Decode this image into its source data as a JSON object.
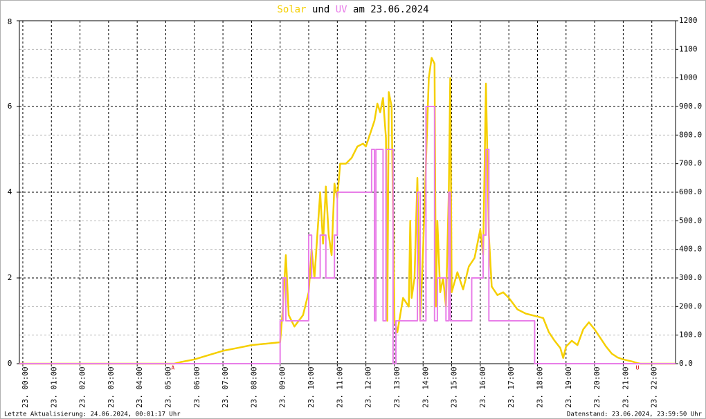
{
  "chart_data": {
    "type": "line",
    "title_connector": "und",
    "title_suffix": "am 23.06.2024",
    "footer_left": "Letzte Aktualisierung: 24.06.2024, 00:01:17 Uhr",
    "footer_right": "Datenstand: 23.06.2024, 23:59:50 Uhr",
    "xlim": [
      -0.12,
      22.83
    ],
    "xticks": [
      {
        "value": 0,
        "label": "23. 00:00"
      },
      {
        "value": 1,
        "label": "23. 01:00"
      },
      {
        "value": 2,
        "label": "23. 02:00"
      },
      {
        "value": 3,
        "label": "23. 03:00"
      },
      {
        "value": 4,
        "label": "23. 04:00"
      },
      {
        "value": 5,
        "label": "23. 05:00"
      },
      {
        "value": 6,
        "label": "23. 06:00"
      },
      {
        "value": 7,
        "label": "23. 07:00"
      },
      {
        "value": 8,
        "label": "23. 08:00"
      },
      {
        "value": 9,
        "label": "23. 09:00"
      },
      {
        "value": 10,
        "label": "23. 10:00"
      },
      {
        "value": 11,
        "label": "23. 11:00"
      },
      {
        "value": 12,
        "label": "23. 12:00"
      },
      {
        "value": 13,
        "label": "23. 13:00"
      },
      {
        "value": 14,
        "label": "23. 14:00"
      },
      {
        "value": 15,
        "label": "23. 15:00"
      },
      {
        "value": 16,
        "label": "23. 16:00"
      },
      {
        "value": 17,
        "label": "23. 17:00"
      },
      {
        "value": 18,
        "label": "23. 18:00"
      },
      {
        "value": 19,
        "label": "23. 19:00"
      },
      {
        "value": 20,
        "label": "23. 20:00"
      },
      {
        "value": 21,
        "label": "23. 21:00"
      },
      {
        "value": 22,
        "label": "23. 22:00"
      },
      {
        "value": 23,
        "label": "23. 23:00"
      }
    ],
    "ylim": [
      0,
      8
    ],
    "yticks": [
      0,
      2,
      4,
      6,
      8
    ],
    "y2lim": [
      0,
      1200
    ],
    "y2ticks": [
      {
        "value": 0,
        "label": "0.0"
      },
      {
        "value": 100,
        "label": "100.0"
      },
      {
        "value": 200,
        "label": "200.0"
      },
      {
        "value": 300,
        "label": "300.0"
      },
      {
        "value": 400,
        "label": "400.0"
      },
      {
        "value": 500,
        "label": "500.0"
      },
      {
        "value": 600,
        "label": "600.0"
      },
      {
        "value": 700,
        "label": "700.0"
      },
      {
        "value": 800,
        "label": "800.0"
      },
      {
        "value": 900,
        "label": "900.0"
      },
      1000,
      1100,
      1200
    ],
    "grid": true,
    "annotations": [
      {
        "x": 5.25,
        "text": "A"
      },
      {
        "x": 21.5,
        "text": "U"
      }
    ],
    "series": [
      {
        "name": "Solar",
        "color": "#f5cf00",
        "axis": "y2",
        "x": [
          -0.12,
          5.3,
          5.5,
          6.0,
          6.5,
          7.0,
          7.5,
          8.0,
          8.5,
          9.0,
          9.1,
          9.2,
          9.3,
          9.5,
          9.8,
          10.0,
          10.1,
          10.2,
          10.4,
          10.5,
          10.6,
          10.7,
          10.8,
          10.9,
          11.0,
          11.1,
          11.3,
          11.5,
          11.7,
          11.9,
          12.0,
          12.1,
          12.2,
          12.3,
          12.4,
          12.5,
          12.6,
          12.7,
          12.75,
          12.8,
          12.9,
          13.0,
          13.1,
          13.3,
          13.5,
          13.55,
          13.6,
          13.7,
          13.8,
          13.9,
          14.0,
          14.1,
          14.2,
          14.3,
          14.4,
          14.45,
          14.5,
          14.6,
          14.7,
          14.8,
          14.9,
          14.95,
          15.0,
          15.2,
          15.4,
          15.6,
          15.8,
          16.0,
          16.1,
          16.2,
          16.3,
          16.4,
          16.6,
          16.8,
          17.0,
          17.3,
          17.6,
          18.0,
          18.2,
          18.4,
          18.6,
          18.8,
          18.9,
          19.0,
          19.2,
          19.4,
          19.6,
          19.8,
          20.0,
          20.2,
          20.4,
          20.6,
          20.8,
          21.0,
          21.3,
          21.5,
          21.6,
          22.83
        ],
        "values": [
          0,
          0,
          5,
          15,
          30,
          45,
          55,
          65,
          70,
          75,
          200,
          380,
          170,
          130,
          170,
          250,
          400,
          300,
          600,
          420,
          620,
          450,
          380,
          630,
          580,
          700,
          700,
          720,
          760,
          770,
          760,
          790,
          820,
          850,
          910,
          880,
          930,
          790,
          150,
          950,
          900,
          150,
          110,
          230,
          200,
          500,
          230,
          300,
          650,
          150,
          400,
          700,
          1000,
          1070,
          1050,
          200,
          500,
          250,
          300,
          200,
          600,
          1000,
          250,
          320,
          260,
          340,
          370,
          470,
          380,
          980,
          450,
          270,
          240,
          250,
          230,
          190,
          175,
          165,
          160,
          110,
          80,
          55,
          20,
          60,
          80,
          65,
          120,
          145,
          120,
          90,
          60,
          35,
          22,
          15,
          8,
          2,
          0,
          0
        ]
      },
      {
        "name": "UV",
        "color": "#e87de8",
        "axis": "y",
        "x": [
          -0.12,
          9.0,
          9.0,
          9.1,
          9.1,
          9.2,
          9.2,
          10.0,
          10.0,
          10.1,
          10.1,
          10.4,
          10.4,
          10.6,
          10.6,
          10.9,
          10.9,
          11.0,
          11.0,
          12.2,
          12.2,
          12.3,
          12.3,
          12.35,
          12.35,
          12.6,
          12.6,
          12.7,
          12.7,
          12.95,
          12.95,
          13.05,
          13.05,
          13.8,
          13.8,
          13.9,
          13.9,
          14.1,
          14.1,
          14.4,
          14.4,
          14.5,
          14.5,
          14.8,
          14.8,
          14.9,
          14.9,
          14.95,
          14.95,
          15.7,
          15.7,
          16.1,
          16.1,
          16.2,
          16.2,
          16.3,
          16.3,
          17.9,
          17.9,
          22.83
        ],
        "values": [
          0,
          0,
          1,
          1,
          2,
          2,
          1,
          1,
          3,
          3,
          2,
          2,
          3,
          3,
          2,
          2,
          3,
          3,
          4,
          4,
          5,
          5,
          1,
          1,
          5,
          5,
          1,
          1,
          5,
          5,
          0,
          0,
          1,
          1,
          4,
          4,
          1,
          1,
          6,
          6,
          1,
          1,
          2,
          2,
          1,
          1,
          4,
          4,
          1,
          1,
          2,
          2,
          3,
          3,
          5,
          5,
          1,
          1,
          0,
          0
        ]
      }
    ]
  }
}
